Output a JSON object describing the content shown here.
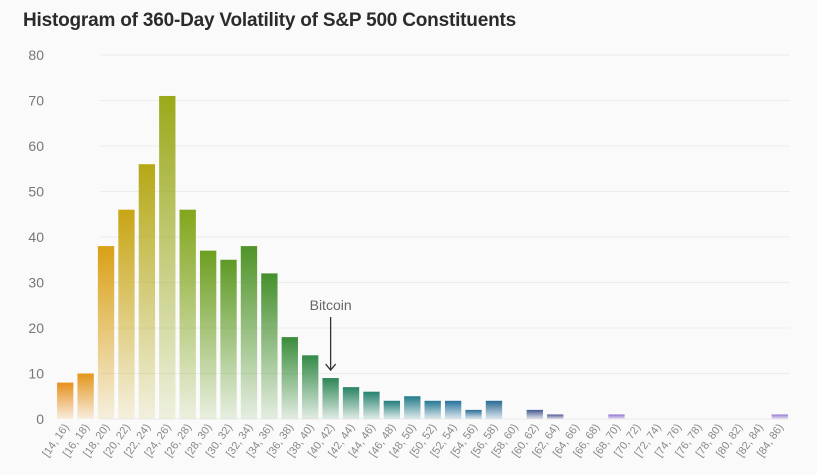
{
  "chart_data": {
    "type": "bar",
    "title": "Histogram of 360-Day Volatility of S&P 500 Constituents",
    "xlabel": "",
    "ylabel": "",
    "ylim": [
      0,
      80
    ],
    "yticks": [
      0,
      10,
      20,
      30,
      40,
      50,
      60,
      70,
      80
    ],
    "grid": true,
    "categories": [
      "[14, 16)",
      "[16, 18)",
      "[18, 20)",
      "[20, 22)",
      "[22, 24)",
      "[24, 26)",
      "[26, 28)",
      "[28, 30)",
      "[30, 32)",
      "[32, 34)",
      "[34, 36)",
      "[36, 38)",
      "[38, 40)",
      "[40, 42)",
      "[42, 44)",
      "[44, 46)",
      "[46, 48)",
      "[48, 50)",
      "[50, 52)",
      "[52, 54)",
      "[54, 56)",
      "[56, 58)",
      "[58, 60)",
      "[60, 62)",
      "[62, 64)",
      "[64, 66)",
      "[66, 68)",
      "[68, 70)",
      "[70, 72)",
      "[72, 74)",
      "[74, 76)",
      "[76, 78)",
      "[78, 80)",
      "[80, 82)",
      "[82, 84)",
      "[84, 86)"
    ],
    "values": [
      8,
      10,
      38,
      46,
      56,
      71,
      46,
      37,
      35,
      38,
      32,
      18,
      14,
      9,
      7,
      6,
      4,
      5,
      4,
      4,
      2,
      4,
      0,
      2,
      1,
      0,
      0,
      1,
      0,
      0,
      0,
      0,
      0,
      0,
      0,
      1
    ],
    "colors": [
      "#e8901c",
      "#e3961a",
      "#d9a015",
      "#c8a514",
      "#b5a816",
      "#9aa91a",
      "#82a61c",
      "#6d9f20",
      "#5e9a24",
      "#4f9428",
      "#45902d",
      "#3a8c3a",
      "#338a48",
      "#2c8655",
      "#288462",
      "#25826e",
      "#237e7c",
      "#237a88",
      "#247694",
      "#26739c",
      "#276e98",
      "#286a94",
      "#3a5c96",
      "#41588f",
      "#4a5a8f",
      "#6a64b0",
      "#7a6ac0",
      "#8a6fcf",
      "#8a6fcf",
      "#8a6fcf",
      "#8a6fcf",
      "#8a6fcf",
      "#8a6fcf",
      "#8a6fcf",
      "#8a6fcf",
      "#9575d4"
    ],
    "annotations": [
      {
        "text": "Bitcoin",
        "category": "[40, 42)"
      }
    ]
  }
}
